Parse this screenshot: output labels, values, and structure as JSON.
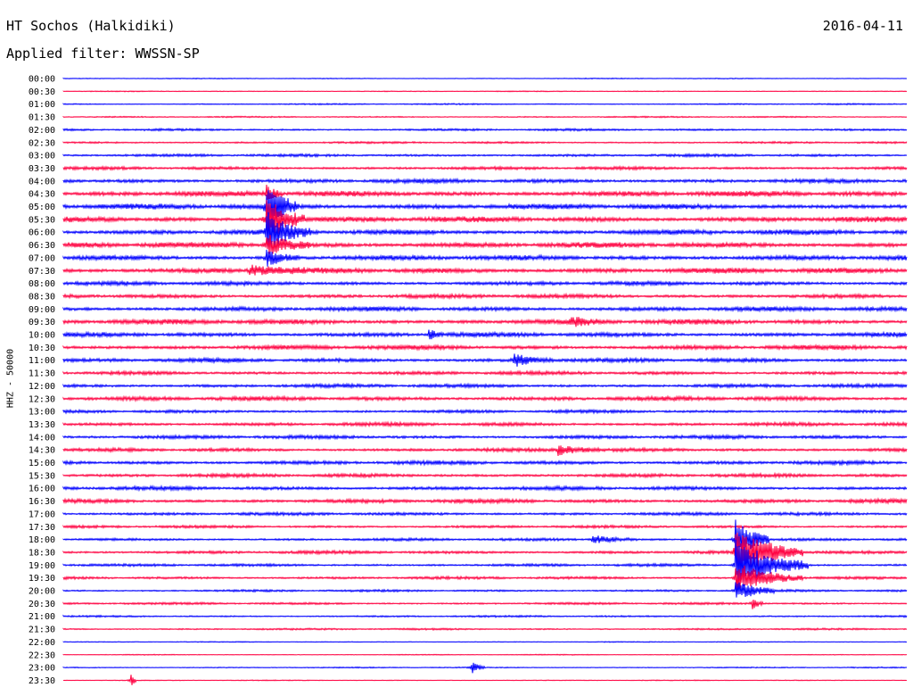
{
  "header": {
    "station": "HT Sochos (Halkidiki)",
    "date": "2016-04-11",
    "filter": "Applied filter: WWSSN-SP"
  },
  "chart_data": {
    "type": "line",
    "title": "HT Sochos (Halkidiki)",
    "subtitle": "Applied filter: WWSSN-SP",
    "ylabel": "HHZ - 50000",
    "xlabel": "",
    "colors": {
      "even_rows": "#0000ff",
      "odd_rows": "#ff0040"
    },
    "rows": [
      "00:00",
      "00:30",
      "01:00",
      "01:30",
      "02:00",
      "02:30",
      "03:00",
      "03:30",
      "04:00",
      "04:30",
      "05:00",
      "05:30",
      "06:00",
      "06:30",
      "07:00",
      "07:30",
      "08:00",
      "08:30",
      "09:00",
      "09:30",
      "10:00",
      "10:30",
      "11:00",
      "11:30",
      "12:00",
      "12:30",
      "13:00",
      "13:30",
      "14:00",
      "14:30",
      "15:00",
      "15:30",
      "16:00",
      "16:30",
      "17:00",
      "17:30",
      "18:00",
      "18:30",
      "19:00",
      "19:30",
      "20:00",
      "20:30",
      "21:00",
      "21:30",
      "22:00",
      "22:30",
      "23:00",
      "23:30"
    ],
    "noise_level": [
      0.4,
      0.4,
      0.6,
      0.6,
      1.0,
      0.9,
      1.2,
      1.4,
      1.8,
      2.4,
      2.4,
      2.4,
      2.2,
      2.4,
      2.2,
      2.4,
      1.8,
      1.8,
      2.0,
      2.2,
      2.0,
      2.0,
      1.8,
      1.6,
      1.6,
      1.9,
      1.4,
      1.6,
      1.6,
      1.6,
      1.7,
      1.6,
      1.7,
      1.8,
      1.4,
      1.2,
      1.2,
      1.4,
      1.2,
      1.2,
      1.0,
      1.0,
      0.8,
      0.8,
      0.4,
      0.4,
      0.5,
      0.4
    ],
    "events": [
      {
        "row": 9,
        "minute": 7.2,
        "amplitude": 10,
        "duration": 0.6
      },
      {
        "row": 10,
        "minute": 7.2,
        "amplitude": 30,
        "duration": 1.2
      },
      {
        "row": 11,
        "minute": 7.2,
        "amplitude": 30,
        "duration": 1.4
      },
      {
        "row": 12,
        "minute": 7.2,
        "amplitude": 22,
        "duration": 1.6
      },
      {
        "row": 13,
        "minute": 7.2,
        "amplitude": 12,
        "duration": 1.6
      },
      {
        "row": 14,
        "minute": 7.2,
        "amplitude": 10,
        "duration": 1.2
      },
      {
        "row": 15,
        "minute": 6.6,
        "amplitude": 6,
        "duration": 2.0
      },
      {
        "row": 19,
        "minute": 18.0,
        "amplitude": 5,
        "duration": 1.2
      },
      {
        "row": 20,
        "minute": 13.0,
        "amplitude": 6,
        "duration": 0.5
      },
      {
        "row": 22,
        "minute": 16.0,
        "amplitude": 7,
        "duration": 1.5
      },
      {
        "row": 29,
        "minute": 17.6,
        "amplitude": 6,
        "duration": 1.5
      },
      {
        "row": 36,
        "minute": 18.8,
        "amplitude": 5,
        "duration": 1.6
      },
      {
        "row": 36,
        "minute": 23.9,
        "amplitude": 28,
        "duration": 1.2
      },
      {
        "row": 37,
        "minute": 23.9,
        "amplitude": 30,
        "duration": 2.4
      },
      {
        "row": 38,
        "minute": 23.9,
        "amplitude": 30,
        "duration": 2.6
      },
      {
        "row": 39,
        "minute": 23.9,
        "amplitude": 18,
        "duration": 2.4
      },
      {
        "row": 40,
        "minute": 23.9,
        "amplitude": 12,
        "duration": 1.4
      },
      {
        "row": 41,
        "minute": 24.5,
        "amplitude": 8,
        "duration": 0.4
      },
      {
        "row": 46,
        "minute": 14.5,
        "amplitude": 8,
        "duration": 0.5
      },
      {
        "row": 47,
        "minute": 2.4,
        "amplitude": 10,
        "duration": 0.2
      }
    ]
  }
}
